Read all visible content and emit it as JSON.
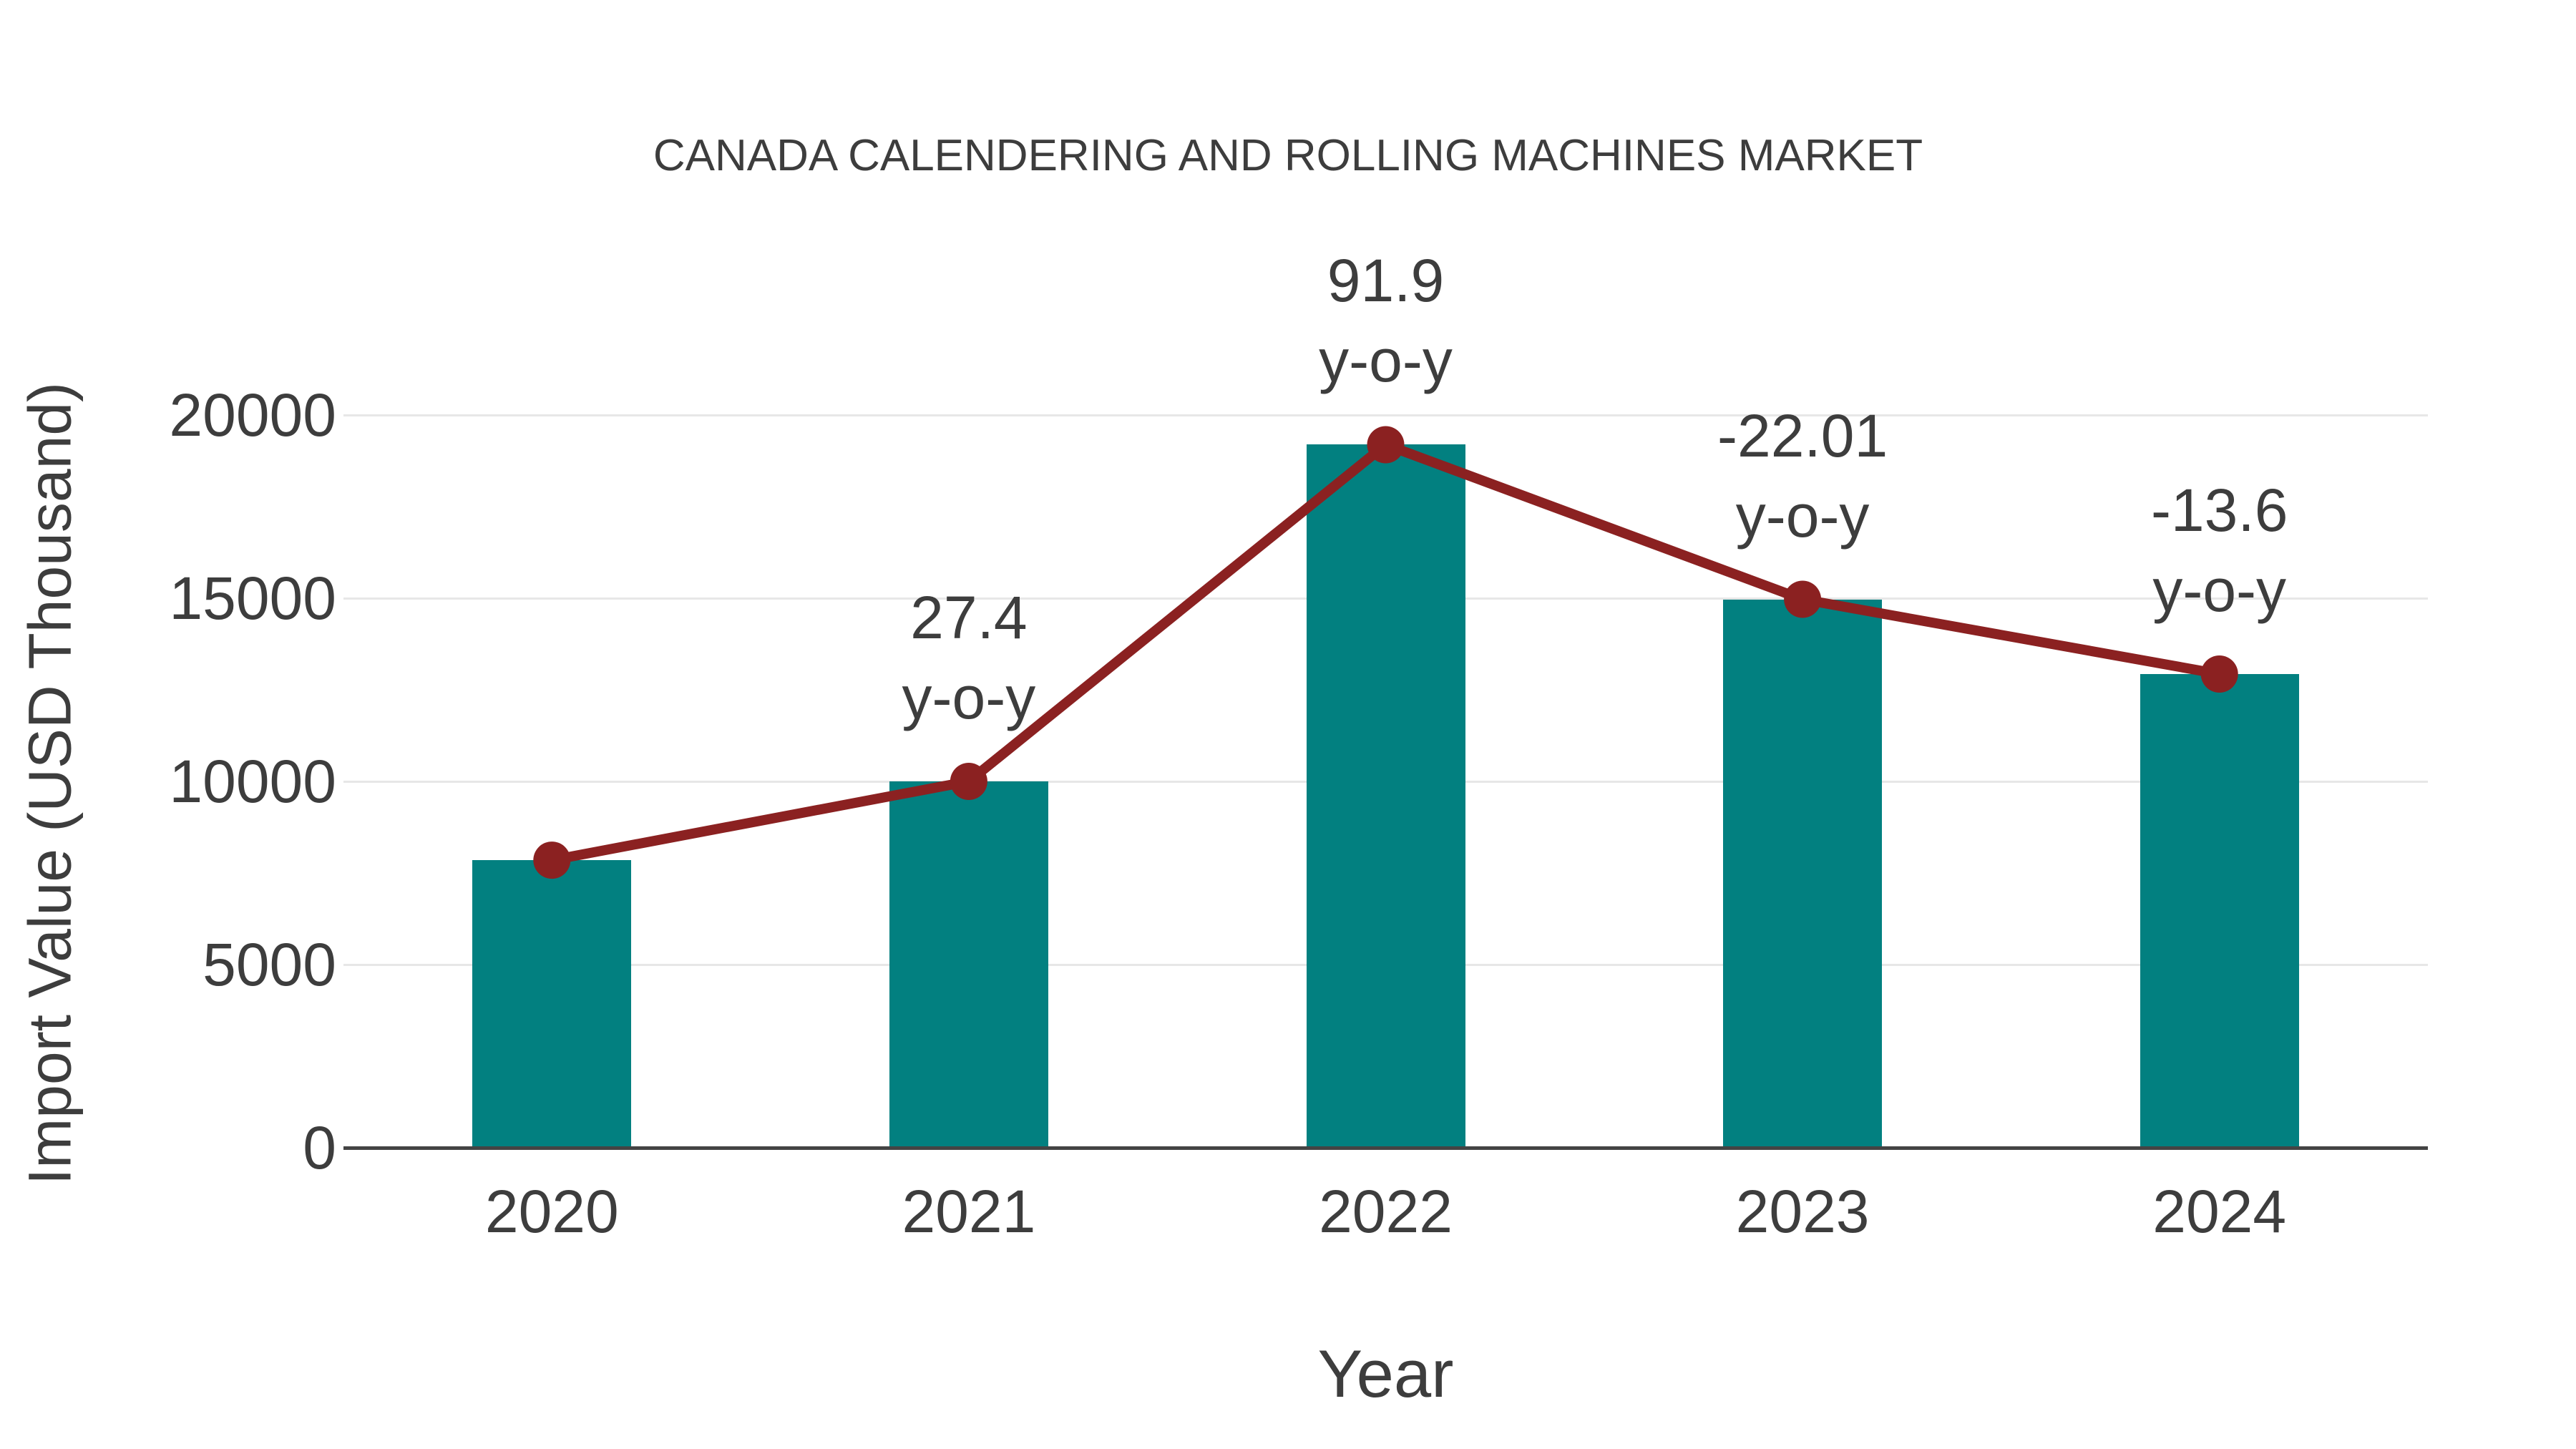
{
  "title": "CANADA CALENDERING AND ROLLING MACHINES MARKET",
  "chart_data": {
    "type": "bar",
    "title": "CANADA CALENDERING AND ROLLING MACHINES MARKET",
    "xlabel": "Year",
    "ylabel": "Import Value (USD Thousand)",
    "categories": [
      "2020",
      "2021",
      "2022",
      "2023",
      "2024"
    ],
    "values": [
      7850,
      10000,
      19190,
      14970,
      12930
    ],
    "line_overlay": {
      "description": "trend line with round markers drawn through the top of each bar",
      "follows": "values",
      "markers": true
    },
    "yoy_percent": [
      null,
      27.4,
      91.9,
      -22.01,
      -13.6
    ],
    "annotations": [
      {
        "category": "2021",
        "lines": [
          "27.4",
          "y-o-y"
        ]
      },
      {
        "category": "2022",
        "lines": [
          "91.9",
          "y-o-y"
        ]
      },
      {
        "category": "2023",
        "lines": [
          "-22.01",
          "y-o-y"
        ]
      },
      {
        "category": "2024",
        "lines": [
          "-13.6",
          "y-o-y"
        ]
      }
    ],
    "yticks": [
      0,
      5000,
      10000,
      15000,
      20000
    ],
    "ylim": [
      0,
      21000
    ],
    "grid": true,
    "legend_position": "none",
    "colors": {
      "bar": "#028080",
      "line": "#8B2121",
      "marker": "#8B2121",
      "text": "#3d3d3d",
      "grid": "#e7e7e7",
      "axis": "#444444"
    }
  }
}
